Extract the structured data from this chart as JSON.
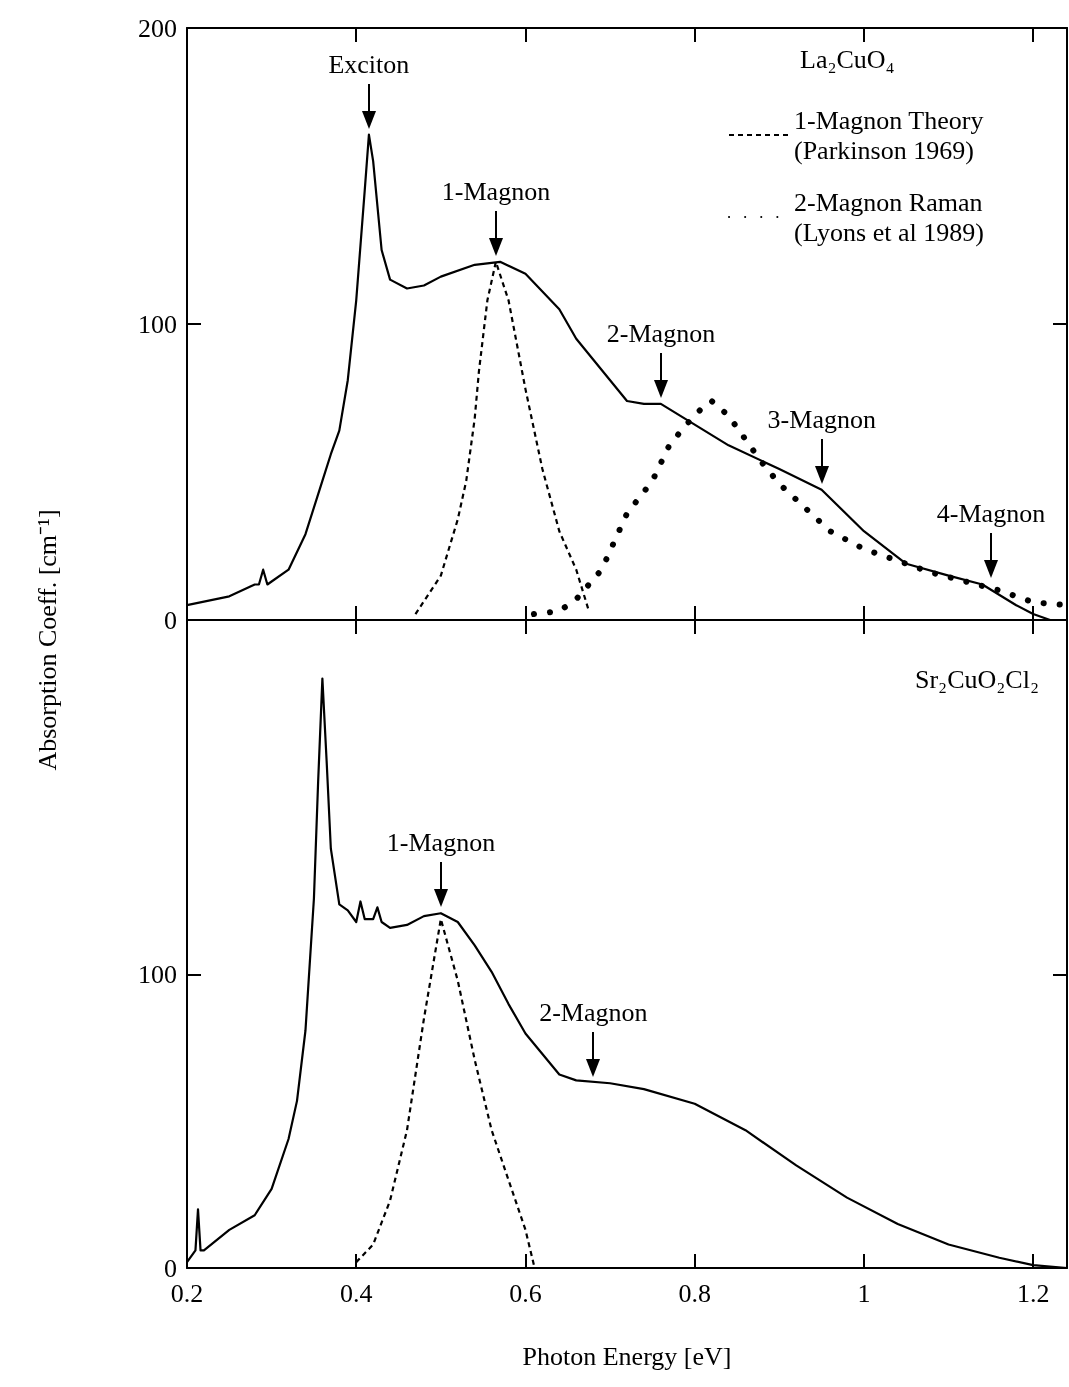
{
  "chart_data": [
    {
      "type": "line",
      "legend_title": "La₂CuO₄",
      "ylabel": "Absorption Coeff. [cm⁻¹]",
      "xlim": [
        0.2,
        1.24
      ],
      "xticks": [
        0.2,
        0.4,
        0.6,
        0.8,
        1.0,
        1.2
      ],
      "ylim": [
        0,
        200
      ],
      "yticks": [
        0,
        100,
        200
      ],
      "tick_labels": "y",
      "grid": false,
      "legend": "top right",
      "marker": "none",
      "series": [
        {
          "color": "#000000",
          "line_style": "solid",
          "x": [
            0.2,
            0.25,
            0.28,
            0.285,
            0.29,
            0.295,
            0.3,
            0.32,
            0.34,
            0.36,
            0.37,
            0.38,
            0.39,
            0.4,
            0.41,
            0.415,
            0.42,
            0.43,
            0.44,
            0.46,
            0.48,
            0.5,
            0.54,
            0.57,
            0.6,
            0.64,
            0.66,
            0.7,
            0.72,
            0.74,
            0.76,
            0.8,
            0.84,
            0.9,
            0.95,
            1.0,
            1.05,
            1.1,
            1.14,
            1.18,
            1.2,
            1.22,
            1.24
          ],
          "values": [
            5,
            8,
            12,
            12,
            17,
            12,
            13,
            17,
            29,
            47,
            56,
            64,
            81,
            108,
            145,
            164,
            155,
            125,
            115,
            112,
            113,
            116,
            120,
            121,
            117,
            105,
            95,
            81,
            74,
            73,
            73,
            66,
            59,
            51,
            44,
            30,
            19,
            15,
            12,
            5,
            2,
            0,
            0
          ]
        },
        {
          "name": "1-Magnon Theory (Parkinson 1969)",
          "color": "#000000",
          "line_style": "dashed",
          "x": [
            0.47,
            0.5,
            0.52,
            0.53,
            0.54,
            0.545,
            0.555,
            0.565,
            0.58,
            0.6,
            0.62,
            0.64,
            0.66,
            0.675
          ],
          "values": [
            2,
            15,
            34,
            47,
            68,
            84,
            108,
            121,
            108,
            78,
            51,
            30,
            17,
            3
          ]
        },
        {
          "name": "2-Magnon Raman (Lyons et al 1989)",
          "color": "#000000",
          "line_style": "dotted",
          "x": [
            0.61,
            0.64,
            0.66,
            0.69,
            0.72,
            0.75,
            0.77,
            0.79,
            0.81,
            0.82,
            0.84,
            0.86,
            0.88,
            0.9,
            0.93,
            0.96,
            1.0,
            1.04,
            1.08,
            1.12,
            1.16,
            1.2,
            1.24
          ],
          "values": [
            2,
            3,
            7,
            17,
            36,
            47,
            59,
            66,
            72,
            74,
            69,
            61,
            53,
            46,
            38,
            30,
            24,
            20,
            16,
            13,
            10,
            6,
            5
          ]
        }
      ],
      "annotations": [
        {
          "text": "Exciton",
          "x": 0.415,
          "y": 164
        },
        {
          "text": "1-Magnon",
          "x": 0.565,
          "y": 121
        },
        {
          "text": "2-Magnon",
          "x": 0.76,
          "y": 73
        },
        {
          "text": "3-Magnon",
          "x": 0.95,
          "y": 44
        },
        {
          "text": "4-Magnon",
          "x": 1.15,
          "y": 12
        }
      ]
    },
    {
      "type": "line",
      "xlabel": "Photon Energy [eV]",
      "xlim": [
        0.2,
        1.24
      ],
      "xticks": [
        0.2,
        0.4,
        0.6,
        0.8,
        1.0,
        1.2
      ],
      "ylim": [
        0,
        221
      ],
      "yticks": [
        0,
        100
      ],
      "grid": false,
      "legend": false,
      "marker": "none",
      "series": [
        {
          "color": "#000000",
          "line_style": "solid",
          "x": [
            0.2,
            0.21,
            0.213,
            0.216,
            0.22,
            0.25,
            0.28,
            0.3,
            0.32,
            0.33,
            0.34,
            0.35,
            0.355,
            0.36,
            0.365,
            0.37,
            0.38,
            0.39,
            0.4,
            0.405,
            0.41,
            0.42,
            0.425,
            0.43,
            0.44,
            0.46,
            0.48,
            0.5,
            0.52,
            0.54,
            0.56,
            0.58,
            0.6,
            0.62,
            0.64,
            0.66,
            0.7,
            0.74,
            0.8,
            0.86,
            0.92,
            0.98,
            1.04,
            1.1,
            1.16,
            1.2,
            1.24
          ],
          "values": [
            2,
            6,
            20,
            6,
            6,
            13,
            18,
            27,
            44,
            57,
            81,
            126,
            166,
            201,
            173,
            143,
            124,
            122,
            118,
            125,
            119,
            119,
            123,
            118,
            116,
            117,
            120,
            121,
            118,
            110,
            101,
            90,
            80,
            73,
            66,
            64,
            63,
            61,
            56,
            47,
            35,
            24,
            15,
            8,
            3.5,
            1,
            0
          ]
        },
        {
          "color": "#000000",
          "line_style": "dashed",
          "x": [
            0.4,
            0.42,
            0.44,
            0.46,
            0.48,
            0.5,
            0.52,
            0.54,
            0.56,
            0.58,
            0.6,
            0.61
          ],
          "values": [
            2,
            8,
            23,
            47,
            85,
            119,
            98,
            71,
            47,
            30,
            13,
            1
          ]
        }
      ],
      "annotations": [
        "Sr₂CuO₂Cl₂",
        {
          "text": "1-Magnon",
          "x": 0.5,
          "y": 121
        },
        {
          "text": "2-Magnon",
          "x": 0.68,
          "y": 63
        }
      ]
    }
  ]
}
